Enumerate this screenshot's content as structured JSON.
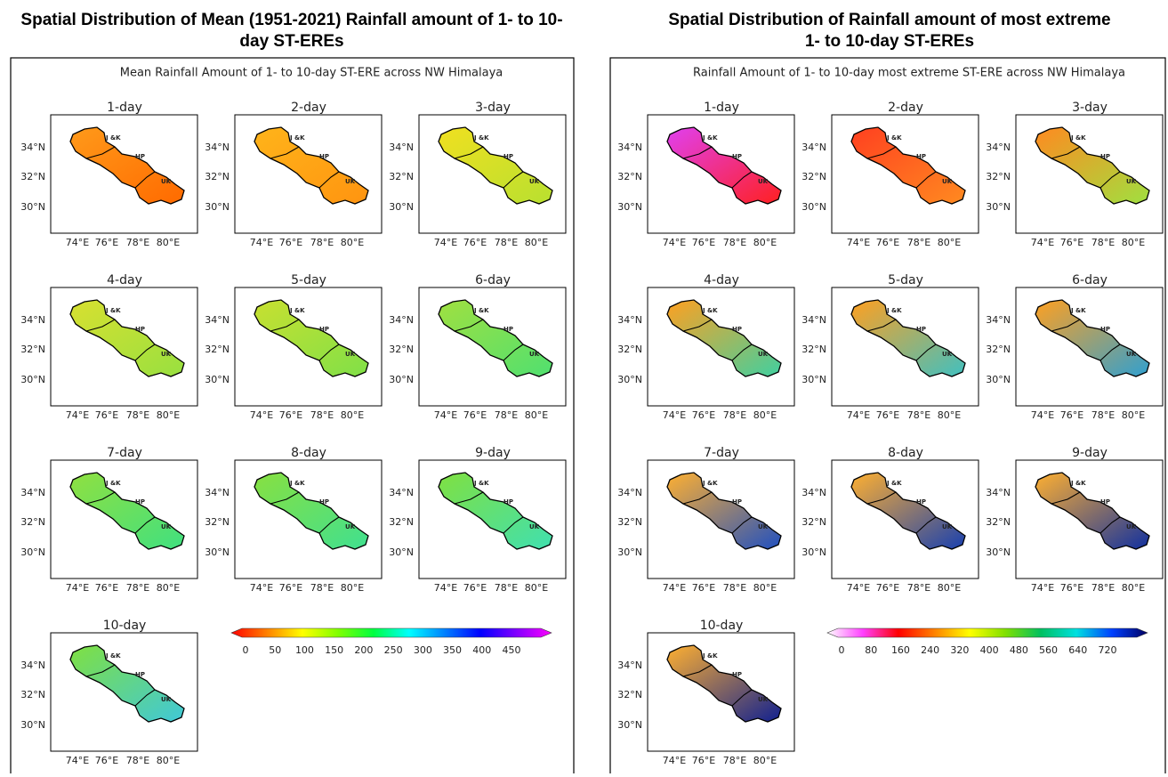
{
  "panels": [
    {
      "title_lines": [
        "Spatial Distribution of Mean (1951-2021) Rainfall amount of 1- to 10-",
        "day ST-EREs"
      ],
      "subtitle": "Mean Rainfall Amount of 1- to 10-day ST-ERE across NW Himalaya",
      "lat_labels": [
        "34°N",
        "32°N",
        "30°N"
      ],
      "lon_labels": [
        "74°E",
        "76°E",
        "78°E",
        "80°E"
      ],
      "region_labels": [
        "J &K",
        "HP",
        "UK"
      ],
      "maps": [
        {
          "label": "1-day",
          "colors": [
            "#ff9a1a",
            "#ff6a00"
          ]
        },
        {
          "label": "2-day",
          "colors": [
            "#ffb41a",
            "#ff9410"
          ]
        },
        {
          "label": "3-day",
          "colors": [
            "#f0e020",
            "#b8e030"
          ]
        },
        {
          "label": "4-day",
          "colors": [
            "#d8e030",
            "#98e040"
          ]
        },
        {
          "label": "5-day",
          "colors": [
            "#c8e030",
            "#80e048"
          ]
        },
        {
          "label": "6-day",
          "colors": [
            "#a0e040",
            "#50e070"
          ]
        },
        {
          "label": "7-day",
          "colors": [
            "#90e040",
            "#40e080"
          ]
        },
        {
          "label": "8-day",
          "colors": [
            "#88e040",
            "#40e090"
          ]
        },
        {
          "label": "9-day",
          "colors": [
            "#80e040",
            "#40e0b0"
          ]
        },
        {
          "label": "10-day",
          "colors": [
            "#80e040",
            "#40c8d8"
          ]
        }
      ],
      "colorbar": {
        "ticks": [
          0,
          50,
          100,
          150,
          200,
          250,
          300,
          350,
          400,
          450
        ],
        "colors": [
          "#ff0000",
          "#ff8000",
          "#ffff00",
          "#80ff00",
          "#00ff40",
          "#00ffff",
          "#0080ff",
          "#0000ff",
          "#8000ff",
          "#ff00ff"
        ]
      }
    },
    {
      "title_lines": [
        "Spatial Distribution of Rainfall amount of most extreme",
        "1- to 10-day ST-EREs"
      ],
      "subtitle": "Rainfall Amount of 1- to 10-day most extreme ST-ERE across NW Himalaya",
      "lat_labels": [
        "34°N",
        "32°N",
        "30°N"
      ],
      "lon_labels": [
        "74°E",
        "76°E",
        "78°E",
        "80°E"
      ],
      "region_labels": [
        "J &K",
        "HP",
        "UK"
      ],
      "maps": [
        {
          "label": "1-day",
          "colors": [
            "#e040f0",
            "#ff2020"
          ]
        },
        {
          "label": "2-day",
          "colors": [
            "#ff4020",
            "#ff8a20"
          ]
        },
        {
          "label": "3-day",
          "colors": [
            "#ff8a20",
            "#a0e040"
          ]
        },
        {
          "label": "4-day",
          "colors": [
            "#ffa020",
            "#40d0a0"
          ]
        },
        {
          "label": "5-day",
          "colors": [
            "#ffa020",
            "#40c0c0"
          ]
        },
        {
          "label": "6-day",
          "colors": [
            "#ffa020",
            "#30a0d0"
          ]
        },
        {
          "label": "7-day",
          "colors": [
            "#ffb030",
            "#2050c0"
          ]
        },
        {
          "label": "8-day",
          "colors": [
            "#ffb030",
            "#1840b0"
          ]
        },
        {
          "label": "9-day",
          "colors": [
            "#ffb030",
            "#1030a0"
          ]
        },
        {
          "label": "10-day",
          "colors": [
            "#ffb030",
            "#102090"
          ]
        }
      ],
      "colorbar": {
        "ticks": [
          0,
          80,
          160,
          240,
          320,
          400,
          480,
          560,
          640,
          720
        ],
        "colors": [
          "#ffffff",
          "#ff40ff",
          "#ff0000",
          "#ff8000",
          "#ffff00",
          "#80e000",
          "#00c060",
          "#00e0e0",
          "#0040ff",
          "#000060"
        ]
      }
    }
  ]
}
